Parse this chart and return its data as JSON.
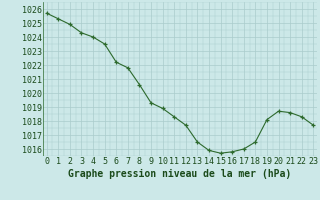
{
  "x": [
    0,
    1,
    2,
    3,
    4,
    5,
    6,
    7,
    8,
    9,
    10,
    11,
    12,
    13,
    14,
    15,
    16,
    17,
    18,
    19,
    20,
    21,
    22,
    23
  ],
  "y": [
    1025.7,
    1025.3,
    1024.9,
    1024.3,
    1024.0,
    1023.5,
    1022.2,
    1021.8,
    1020.6,
    1019.3,
    1018.9,
    1018.3,
    1017.7,
    1016.5,
    1015.9,
    1015.7,
    1015.8,
    1016.0,
    1016.5,
    1018.1,
    1018.7,
    1018.6,
    1018.3,
    1017.7
  ],
  "ylim": [
    1015.5,
    1026.5
  ],
  "yticks": [
    1016,
    1017,
    1018,
    1019,
    1020,
    1021,
    1022,
    1023,
    1024,
    1025,
    1026
  ],
  "xticks": [
    0,
    1,
    2,
    3,
    4,
    5,
    6,
    7,
    8,
    9,
    10,
    11,
    12,
    13,
    14,
    15,
    16,
    17,
    18,
    19,
    20,
    21,
    22,
    23
  ],
  "line_color": "#2d6a2d",
  "marker": "+",
  "bg_color": "#cce8e8",
  "grid_color": "#aacccc",
  "xlabel": "Graphe pression niveau de la mer (hPa)",
  "xlabel_fontsize": 7,
  "tick_fontsize": 6,
  "label_color": "#1a4a1a",
  "axes_bg": "#cce8e8"
}
